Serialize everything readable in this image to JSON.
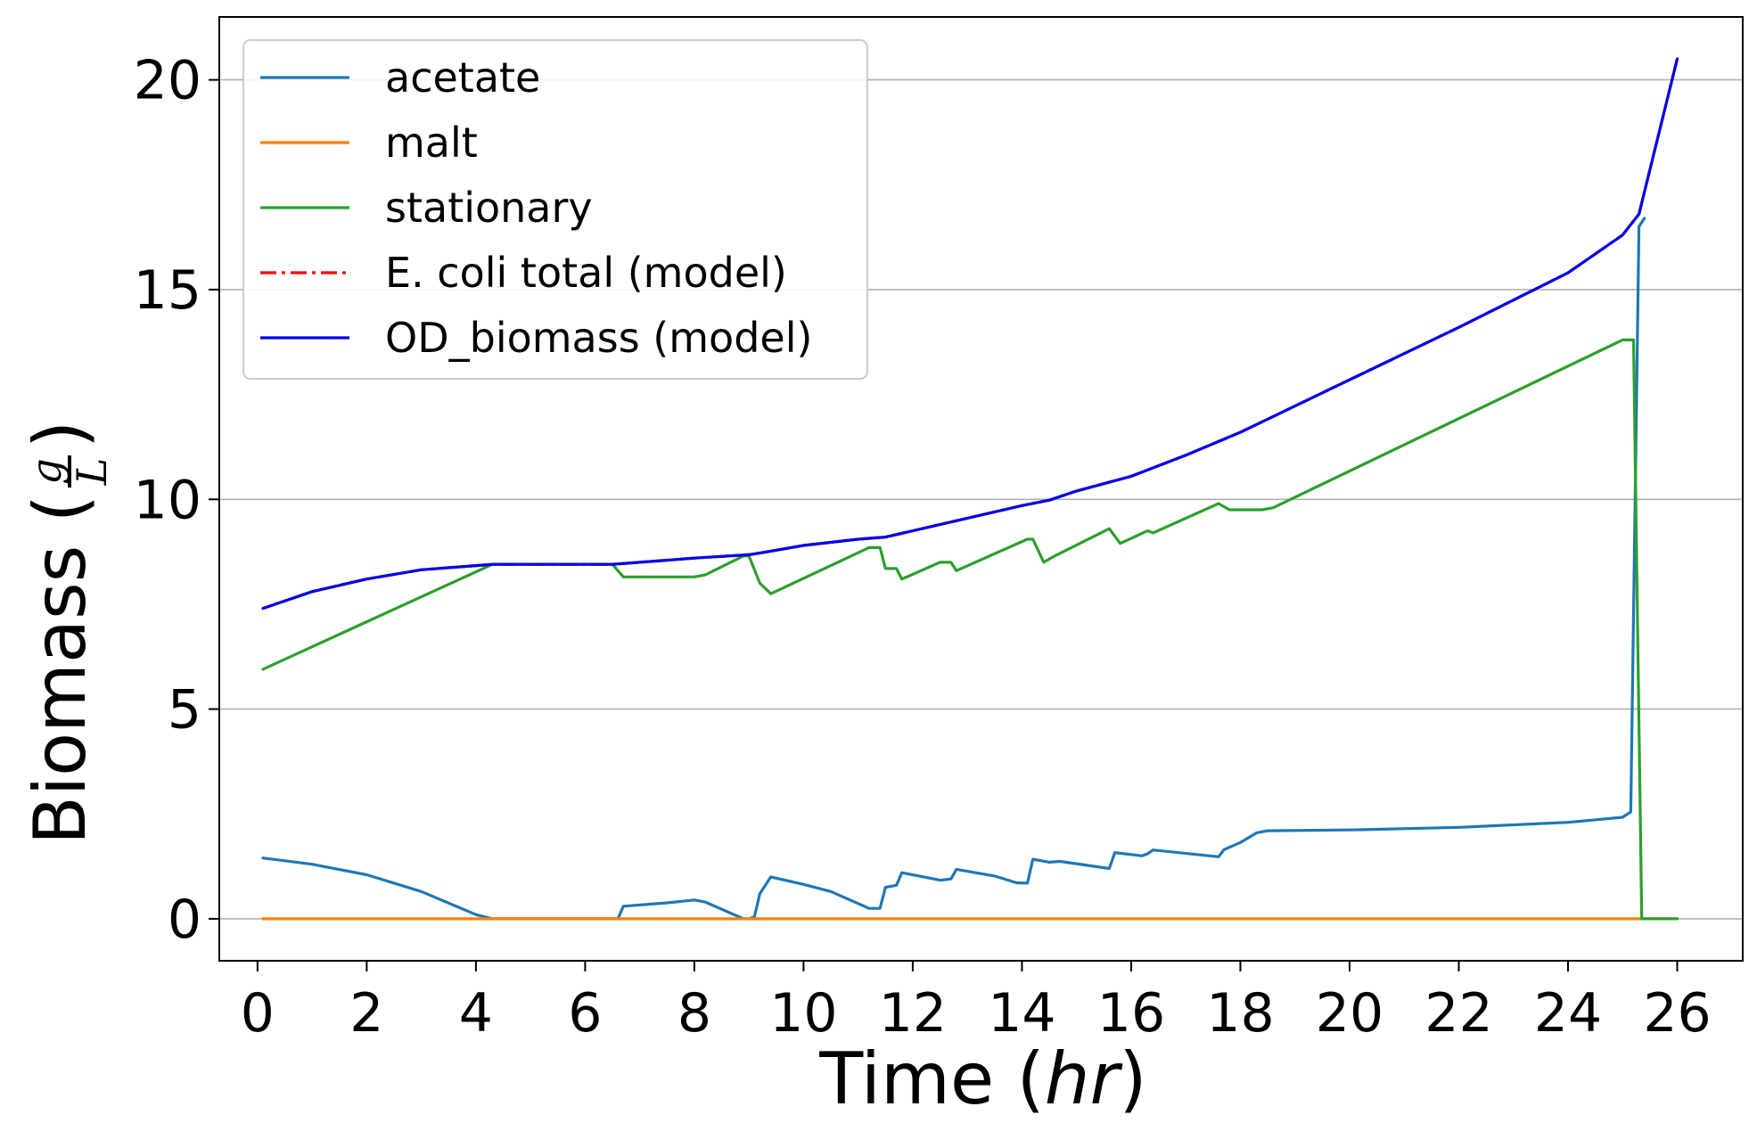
{
  "chart_data": {
    "type": "line",
    "title": "",
    "xlabel_main": "Time (",
    "xlabel_unit": "hr",
    "xlabel_close": ")",
    "ylabel_main": "Biomass (",
    "ylabel_frac_num": "g",
    "ylabel_frac_den": "L",
    "ylabel_close": ")",
    "xlim": [
      -0.7,
      27.2
    ],
    "ylim": [
      -1.0,
      21.5
    ],
    "xticks": [
      0,
      2,
      4,
      6,
      8,
      10,
      12,
      14,
      16,
      18,
      20,
      22,
      24,
      26
    ],
    "xtick_labels": [
      "0",
      "2",
      "4",
      "6",
      "8",
      "10",
      "12",
      "14",
      "16",
      "18",
      "20",
      "22",
      "24",
      "26"
    ],
    "yticks": [
      0,
      5,
      10,
      15,
      20
    ],
    "ytick_labels": [
      "0",
      "5",
      "10",
      "15",
      "20"
    ],
    "grid": "horizontal",
    "legend_position": "top-left",
    "series": [
      {
        "name": "acetate",
        "color": "#1f77b4",
        "dash": "solid",
        "x": [
          0.1,
          1.0,
          2.0,
          3.0,
          4.0,
          4.3,
          6.5,
          6.6,
          6.7,
          7.5,
          8.0,
          8.2,
          8.9,
          9.0,
          9.1,
          9.2,
          9.4,
          10.0,
          10.5,
          11.2,
          11.4,
          11.5,
          11.7,
          11.8,
          12.5,
          12.7,
          12.8,
          13.5,
          13.9,
          14.1,
          14.2,
          14.5,
          14.7,
          15.6,
          15.7,
          16.2,
          16.3,
          16.4,
          17.6,
          17.7,
          18.0,
          18.3,
          18.5,
          20.0,
          22.0,
          24.0,
          25.0,
          25.15,
          25.3,
          25.4
        ],
        "y": [
          1.45,
          1.3,
          1.05,
          0.65,
          0.1,
          0.0,
          0.0,
          0.0,
          0.3,
          0.38,
          0.45,
          0.4,
          0.0,
          0.0,
          0.05,
          0.6,
          1.0,
          0.82,
          0.65,
          0.25,
          0.25,
          0.75,
          0.8,
          1.1,
          0.92,
          0.95,
          1.18,
          1.02,
          0.86,
          0.85,
          1.42,
          1.35,
          1.37,
          1.2,
          1.58,
          1.5,
          1.55,
          1.64,
          1.48,
          1.65,
          1.82,
          2.05,
          2.1,
          2.12,
          2.18,
          2.3,
          2.42,
          2.55,
          16.5,
          16.7
        ]
      },
      {
        "name": "malt",
        "color": "#ff7f0e",
        "dash": "solid",
        "x": [
          0.1,
          26.0
        ],
        "y": [
          0.0,
          0.0
        ]
      },
      {
        "name": "stationary",
        "color": "#2ca02c",
        "dash": "solid",
        "x": [
          0.1,
          4.3,
          6.5,
          6.7,
          7.0,
          8.0,
          8.2,
          8.9,
          9.0,
          9.2,
          9.4,
          11.2,
          11.4,
          11.5,
          11.7,
          11.8,
          12.5,
          12.7,
          12.8,
          14.1,
          14.2,
          14.4,
          14.6,
          14.8,
          15.6,
          15.8,
          16.3,
          16.4,
          17.6,
          17.8,
          18.4,
          18.6,
          25.0,
          25.2,
          25.35,
          26.0
        ],
        "y": [
          5.95,
          8.45,
          8.45,
          8.15,
          8.15,
          8.15,
          8.2,
          8.65,
          8.65,
          8.0,
          7.75,
          8.85,
          8.85,
          8.35,
          8.35,
          8.1,
          8.5,
          8.5,
          8.3,
          9.05,
          9.05,
          8.5,
          8.65,
          8.78,
          9.3,
          8.95,
          9.25,
          9.2,
          9.9,
          9.75,
          9.75,
          9.8,
          13.8,
          13.8,
          0.0,
          0.0
        ]
      },
      {
        "name": "E. coli total (model)",
        "color": "#ff0000",
        "dash": "dashdot",
        "x": [
          0.1,
          1.0,
          2.0,
          3.0,
          4.0,
          4.3,
          6.5,
          7.0,
          8.0,
          9.0,
          9.2,
          10.0,
          11.0,
          11.5,
          12.0,
          13.0,
          14.0,
          14.5,
          15.0,
          16.0,
          17.0,
          18.0,
          20.0,
          22.0,
          24.0,
          25.0,
          25.3,
          26.0
        ],
        "y": [
          7.4,
          7.8,
          8.1,
          8.32,
          8.42,
          8.45,
          8.45,
          8.5,
          8.6,
          8.68,
          8.72,
          8.9,
          9.05,
          9.1,
          9.25,
          9.55,
          9.85,
          9.98,
          10.2,
          10.55,
          11.05,
          11.6,
          12.85,
          14.1,
          15.4,
          16.3,
          16.8,
          20.5
        ]
      },
      {
        "name": "OD_biomass (model)",
        "color": "#0000ee",
        "dash": "solid",
        "x": [
          0.1,
          1.0,
          2.0,
          3.0,
          4.0,
          4.3,
          6.5,
          7.0,
          8.0,
          9.0,
          9.2,
          10.0,
          11.0,
          11.5,
          12.0,
          13.0,
          14.0,
          14.5,
          15.0,
          16.0,
          17.0,
          18.0,
          20.0,
          22.0,
          24.0,
          25.0,
          25.3,
          26.0
        ],
        "y": [
          7.4,
          7.8,
          8.1,
          8.32,
          8.42,
          8.45,
          8.45,
          8.5,
          8.6,
          8.68,
          8.72,
          8.9,
          9.05,
          9.1,
          9.25,
          9.55,
          9.85,
          9.98,
          10.2,
          10.55,
          11.05,
          11.6,
          12.85,
          14.1,
          15.4,
          16.3,
          16.8,
          20.5
        ]
      }
    ]
  }
}
